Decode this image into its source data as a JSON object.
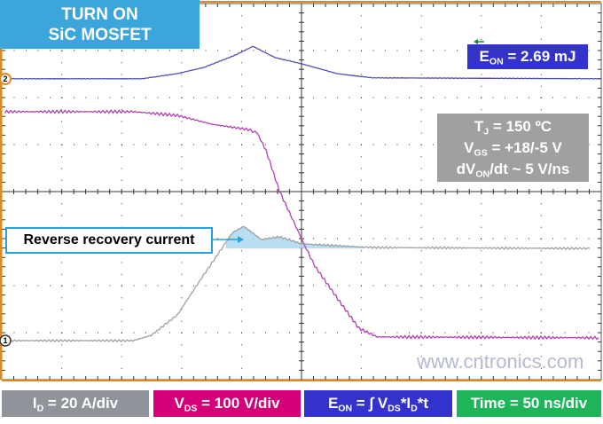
{
  "title": {
    "line1": "TURN ON",
    "line2": "SiC MOSFET"
  },
  "energy_label": {
    "prefix": "E",
    "sub": "ON",
    "value": " = 2.69 mJ"
  },
  "conditions": {
    "tj": {
      "prefix": "T",
      "sub": "J",
      "value": " = 150 ºC"
    },
    "vgs": {
      "prefix": "V",
      "sub": "GS",
      "value": " = +18/-5 V"
    },
    "dvdt": {
      "prefix": "dV",
      "sub": "ON",
      "value": "/dt ~ 5 V/ns"
    }
  },
  "annotation": "Reverse recovery current",
  "legend": {
    "id": {
      "prefix": "I",
      "sub": "D",
      "value": " = 20 A/div"
    },
    "vds": {
      "prefix": "V",
      "sub": "DS",
      "value": " = 100 V/div"
    },
    "eon": {
      "prefix": "E",
      "sub": "ON",
      "mid": " = ∫ V",
      "sub2": "DS",
      "mid2": "*I",
      "sub3": "D",
      "end": "*t"
    },
    "time": {
      "value": "Time = 50 ns/div"
    }
  },
  "watermark": "www.cntronics.com",
  "channel_markers": {
    "ch1": "1",
    "ch2": "2"
  },
  "colors": {
    "eon_trace": "#5050b0",
    "vds_trace": "#b040b0",
    "id_trace": "#a0a0a0",
    "recovery_fill": "#aad8ee",
    "frame": "#e08a1e",
    "grid": "#333333"
  },
  "chart_data": {
    "type": "line",
    "x_unit": "divisions (50 ns/div)",
    "y_unit": "divisions",
    "xlim": [
      0,
      10
    ],
    "ylim": [
      0,
      8
    ],
    "grid": true,
    "series": [
      {
        "key": "eon",
        "x": [
          0,
          2.34,
          2.93,
          3.37,
          3.89,
          4.19,
          4.56,
          5.0,
          5.59,
          6.18,
          10
        ],
        "y": [
          6.4,
          6.4,
          6.51,
          6.64,
          6.9,
          7.09,
          6.85,
          6.72,
          6.51,
          6.42,
          6.4
        ]
      },
      {
        "key": "vds",
        "x": [
          0.05,
          2.19,
          2.93,
          3.52,
          4.11,
          4.26,
          4.41,
          4.63,
          5.04,
          5.22,
          5.67,
          5.96,
          6.26,
          9.96
        ],
        "y": [
          5.7,
          5.7,
          5.62,
          5.43,
          5.32,
          5.25,
          4.87,
          4.02,
          2.89,
          2.42,
          1.6,
          1.09,
          0.91,
          0.89
        ]
      },
      {
        "key": "id",
        "x": [
          0.05,
          2.19,
          2.49,
          2.93,
          3.37,
          3.67,
          3.85,
          4.04,
          4.33,
          4.63,
          5.0,
          6.18,
          9.81
        ],
        "y": [
          0.83,
          0.83,
          0.94,
          1.38,
          2.23,
          2.79,
          3.13,
          3.26,
          2.98,
          3.04,
          2.89,
          2.81,
          2.79
        ]
      }
    ],
    "recovery_region": {
      "x_start": 3.74,
      "x_end": 6.04,
      "baseline": 2.79
    }
  }
}
